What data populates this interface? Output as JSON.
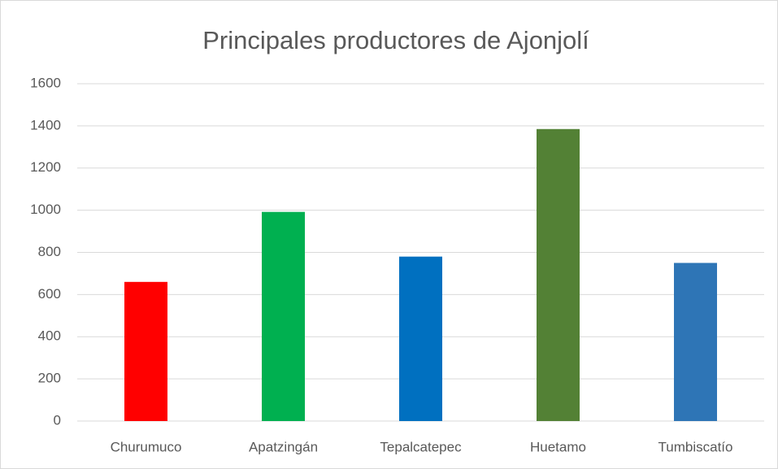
{
  "chart_data": {
    "type": "bar",
    "title": "Principales productores de Ajonjolí",
    "categories": [
      "Churumuco",
      "Apatzingán",
      "Tepalcatepec",
      "Huetamo",
      "Tumbiscatío"
    ],
    "values": [
      660,
      992,
      780,
      1385,
      750
    ],
    "colors": [
      "#ff0000",
      "#00b050",
      "#0070c0",
      "#538135",
      "#2e75b6"
    ],
    "ylim": [
      0,
      1600
    ],
    "yticks": [
      0,
      200,
      400,
      600,
      800,
      1000,
      1200,
      1400,
      1600
    ],
    "grid": true
  }
}
